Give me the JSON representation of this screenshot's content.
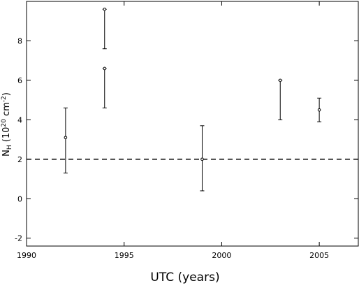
{
  "chart_data": {
    "type": "errorbar",
    "xlabel": "UTC (years)",
    "ylabel_parts": [
      {
        "text": "N"
      },
      {
        "text": "H",
        "style": "sub"
      },
      {
        "text": " (10"
      },
      {
        "text": "20",
        "style": "sup"
      },
      {
        "text": " cm"
      },
      {
        "text": "-2",
        "style": "sup"
      },
      {
        "text": ")"
      }
    ],
    "xlim": [
      1990,
      2007
    ],
    "xticks": [
      1990,
      1995,
      2000,
      2005
    ],
    "ylim": [
      -2.4,
      10
    ],
    "yticks": [
      -2,
      0,
      2,
      4,
      6,
      8
    ],
    "color": "#000000",
    "reference_line": 2,
    "series": [
      {
        "x": [
          1992,
          1994,
          1994,
          1999,
          2003,
          2005
        ],
        "values": [
          3.1,
          9.6,
          6.6,
          2.0,
          6.0,
          4.5
        ],
        "lower": [
          1.3,
          7.6,
          4.6,
          0.4,
          4.0,
          3.9
        ],
        "upper": [
          4.6,
          9.6,
          6.6,
          3.7,
          6.0,
          5.1
        ]
      }
    ]
  }
}
